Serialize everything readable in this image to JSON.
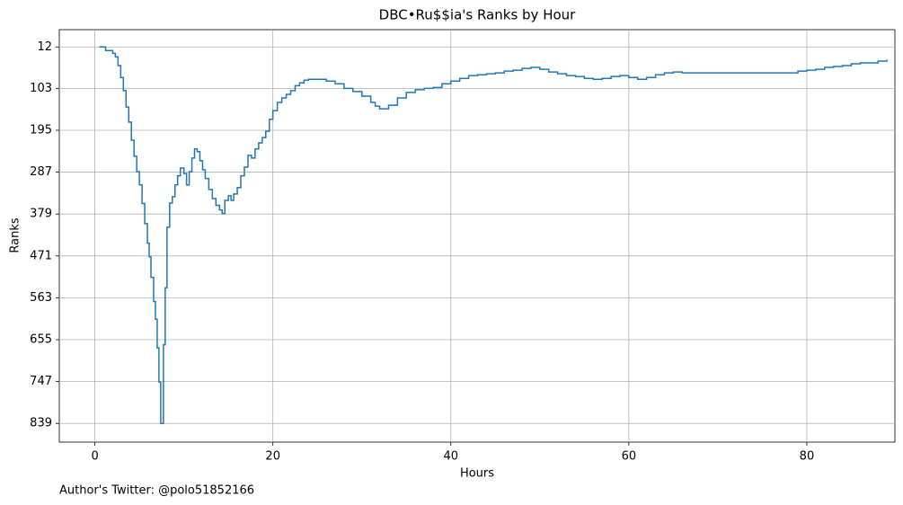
{
  "chart_data": {
    "type": "line",
    "drawstyle": "steps-post",
    "title": "DBC•Ru$$ia's Ranks by Hour",
    "xlabel": "Hours",
    "ylabel": "Ranks",
    "footnote": "Author's Twitter: @polo51852166",
    "y_inverted": true,
    "grid": true,
    "xlim": [
      -4,
      89.9
    ],
    "xticks": [
      0,
      20,
      40,
      60,
      80
    ],
    "ylim": [
      -26,
      880
    ],
    "yticks": [
      12,
      103,
      195,
      287,
      379,
      471,
      563,
      655,
      747,
      839
    ],
    "x": [
      0.5,
      1,
      1.2,
      2,
      2.3,
      2.6,
      2.9,
      3.2,
      3.5,
      3.8,
      4.1,
      4.4,
      4.7,
      5,
      5.3,
      5.6,
      5.9,
      6.1,
      6.3,
      6.6,
      6.8,
      7,
      7.2,
      7.4,
      7.7,
      7.9,
      8.1,
      8.4,
      8.7,
      9,
      9.3,
      9.6,
      10,
      10.3,
      10.6,
      10.9,
      11.2,
      11.5,
      11.8,
      12.1,
      12.4,
      12.8,
      13.2,
      13.6,
      14,
      14.3,
      14.6,
      15,
      15.3,
      15.6,
      16,
      16.4,
      16.8,
      17.2,
      17.6,
      18,
      18.4,
      18.8,
      19.2,
      19.6,
      20,
      20.5,
      21,
      21.5,
      22,
      22.5,
      23,
      23.5,
      24,
      25,
      26,
      27,
      28,
      29,
      30,
      31,
      31.5,
      32,
      33,
      34,
      35,
      36,
      37,
      38,
      39,
      40,
      41,
      42,
      43,
      44,
      45,
      46,
      47,
      48,
      49,
      50,
      51,
      52,
      53,
      54,
      55,
      56,
      57,
      58,
      59,
      60,
      61,
      62,
      63,
      64,
      65,
      66,
      67,
      70,
      75,
      78,
      79,
      80,
      81,
      82,
      83,
      84,
      85,
      86,
      87,
      88,
      89
    ],
    "series": [
      {
        "name": "Ranks",
        "color": "#1f77b4",
        "values": [
          12,
          12,
          20,
          26,
          34,
          53,
          79,
          108,
          144,
          177,
          217,
          252,
          286,
          315,
          356,
          400,
          443,
          473,
          518,
          571,
          610,
          673,
          748,
          839,
          666,
          541,
          408,
          355,
          341,
          315,
          295,
          278,
          290,
          315,
          286,
          256,
          236,
          242,
          262,
          282,
          301,
          325,
          345,
          360,
          370,
          378,
          349,
          339,
          349,
          335,
          321,
          295,
          276,
          250,
          256,
          236,
          223,
          211,
          197,
          171,
          152,
          134,
          124,
          116,
          108,
          97,
          91,
          85,
          83,
          83,
          87,
          93,
          103,
          110,
          120,
          134,
          142,
          148,
          140,
          124,
          112,
          106,
          103,
          101,
          93,
          87,
          81,
          75,
          73,
          71,
          69,
          65,
          63,
          59,
          57,
          61,
          67,
          71,
          75,
          77,
          81,
          83,
          81,
          77,
          75,
          79,
          83,
          79,
          73,
          69,
          67,
          69,
          69,
          69,
          69,
          69,
          65,
          63,
          61,
          57,
          55,
          53,
          49,
          47,
          47,
          43,
          40
        ]
      }
    ]
  }
}
